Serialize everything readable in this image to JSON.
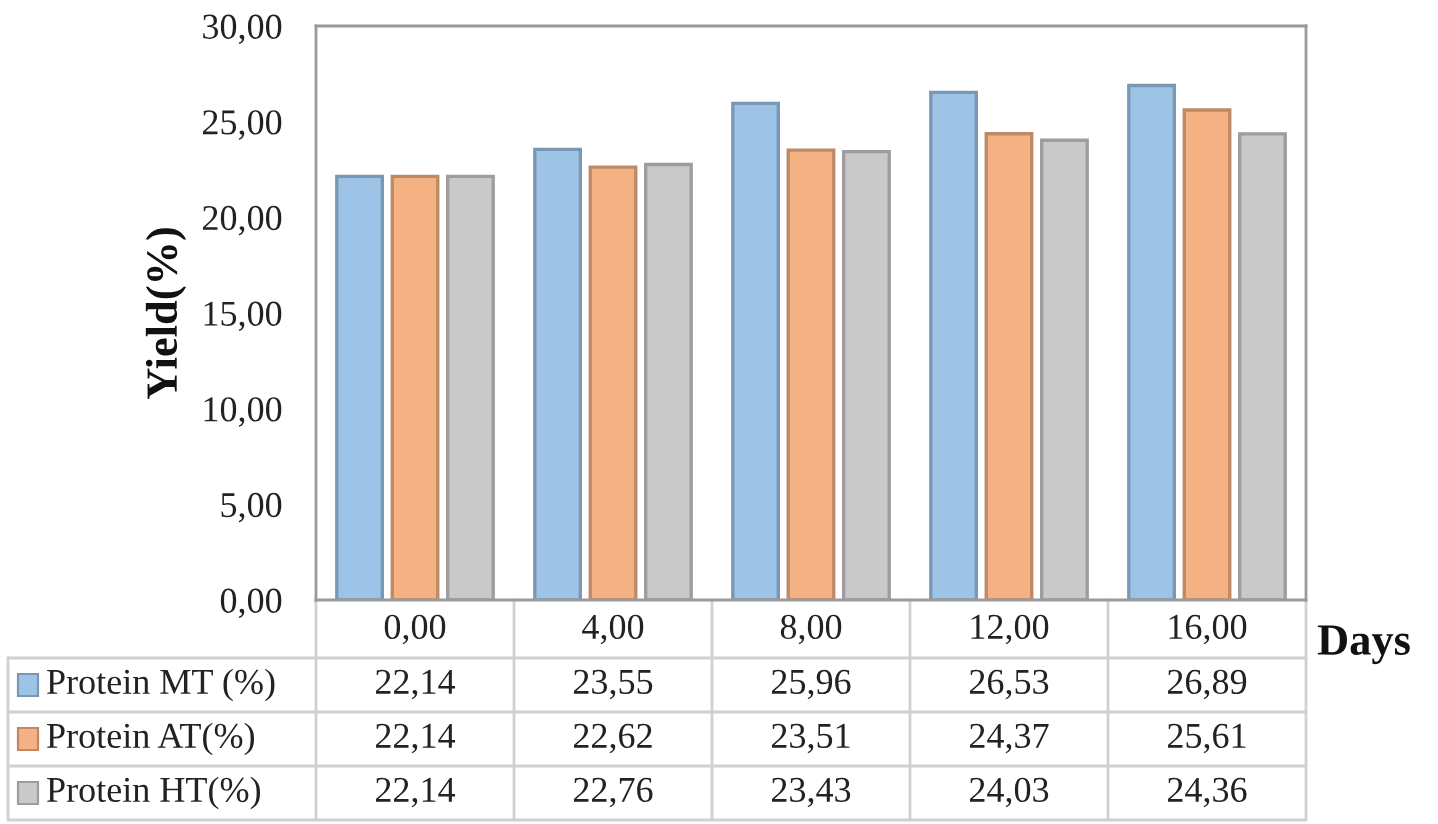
{
  "chart_data": {
    "type": "bar",
    "categories": [
      "0,00",
      "4,00",
      "8,00",
      "12,00",
      "16,00"
    ],
    "xlabel": "Days",
    "ylabel": "Yield(%)",
    "series": [
      {
        "name": "Protein MT (%)",
        "color": "#9dc3e6",
        "values": [
          22.14,
          23.55,
          25.96,
          26.53,
          26.89
        ],
        "value_labels": [
          "22,14",
          "23,55",
          "25,96",
          "26,53",
          "26,89"
        ]
      },
      {
        "name": "Protein AT(%)",
        "color": "#f4b183",
        "values": [
          22.14,
          22.62,
          23.51,
          24.37,
          25.61
        ],
        "value_labels": [
          "22,14",
          "22,62",
          "23,51",
          "24,37",
          "25,61"
        ]
      },
      {
        "name": "Protein HT(%)",
        "color": "#c9c9c9",
        "values": [
          22.14,
          22.76,
          23.43,
          24.03,
          24.36
        ],
        "value_labels": [
          "22,14",
          "22,76",
          "23,43",
          "24,03",
          "24,36"
        ]
      }
    ],
    "ylim": [
      0,
      30
    ],
    "yticks": [
      {
        "value": 0,
        "label": "0,00"
      },
      {
        "value": 5,
        "label": "5,00"
      },
      {
        "value": 10,
        "label": "10,00"
      },
      {
        "value": 15,
        "label": "15,00"
      },
      {
        "value": 20,
        "label": "20,00"
      },
      {
        "value": 25,
        "label": "25,00"
      },
      {
        "value": 30,
        "label": "30,00"
      }
    ],
    "legend": "bottom"
  }
}
